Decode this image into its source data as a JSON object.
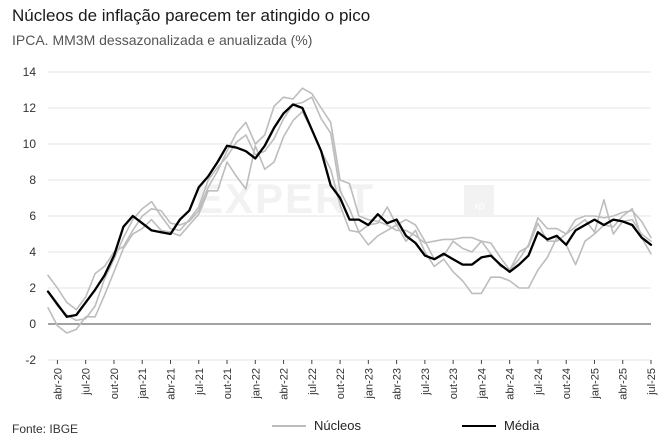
{
  "title": "Núcleos de inflação parecem ter atingido o pico",
  "subtitle": "IPCA. MM3M dessazonalizada e anualizada (%)",
  "source": "Fonte: IBGE",
  "watermark": "EXPERT",
  "watermark_logo": "xp",
  "colors": {
    "nucleos": "#bdbdbd",
    "media": "#000000",
    "grid": "#e6e6e6",
    "axis": "#444444"
  },
  "chart_data": {
    "type": "line",
    "ylim": [
      -2,
      14
    ],
    "yticks": [
      -2,
      0,
      2,
      4,
      6,
      8,
      10,
      12,
      14
    ],
    "grid": true,
    "legend_position": "bottom",
    "x": [
      "mar-20",
      "abr-20",
      "mai-20",
      "jun-20",
      "jul-20",
      "ago-20",
      "set-20",
      "out-20",
      "nov-20",
      "dez-20",
      "jan-21",
      "fev-21",
      "mar-21",
      "abr-21",
      "mai-21",
      "jun-21",
      "jul-21",
      "ago-21",
      "set-21",
      "out-21",
      "nov-21",
      "dez-21",
      "jan-22",
      "fev-22",
      "mar-22",
      "abr-22",
      "mai-22",
      "jun-22",
      "jul-22",
      "ago-22",
      "set-22",
      "out-22",
      "nov-22",
      "dez-22",
      "jan-23",
      "fev-23",
      "mar-23",
      "abr-23",
      "mai-23",
      "jun-23",
      "jul-23",
      "ago-23",
      "set-23",
      "out-23",
      "nov-23",
      "dez-23",
      "jan-24",
      "fev-24",
      "mar-24",
      "abr-24",
      "mai-24",
      "jun-24",
      "jul-24",
      "ago-24",
      "set-24",
      "out-24",
      "nov-24",
      "dez-24",
      "jan-25",
      "fev-25",
      "mar-25",
      "abr-25",
      "mai-25",
      "jun-25",
      "jul-25"
    ],
    "xtick_labels": [
      "abr-20",
      "jul-20",
      "out-20",
      "jan-21",
      "abr-21",
      "jul-21",
      "out-21",
      "jan-22",
      "abr-22",
      "jul-22",
      "out-22",
      "jan-23",
      "abr-23",
      "jul-23",
      "out-23",
      "jan-24",
      "abr-24",
      "jul-24",
      "out-24",
      "jan-25",
      "abr-25",
      "jul-25"
    ],
    "series": [
      {
        "name": "Núcleos",
        "values": [
          2.7,
          2.0,
          1.2,
          0.8,
          1.5,
          2.8,
          3.2,
          4.0,
          4.3,
          5.2,
          6.0,
          6.4,
          6.3,
          5.6,
          5.5,
          5.7,
          6.3,
          7.6,
          8.5,
          9.6,
          10.6,
          11.2,
          10.0,
          10.5,
          12.1,
          12.6,
          12.5,
          13.1,
          12.8,
          12.0,
          11.2,
          8.0,
          7.8,
          6.0,
          5.8,
          5.7,
          5.5,
          5.2,
          5.2,
          4.9,
          4.5,
          4.6,
          4.7,
          4.7,
          4.8,
          4.8,
          4.6,
          3.9,
          3.2,
          3.0,
          3.6,
          4.4,
          5.9,
          5.3,
          5.3,
          5.0,
          5.8,
          6.0,
          6.0,
          5.9,
          6.0,
          6.2,
          6.3,
          5.7,
          4.8
        ]
      },
      {
        "name": "Núcleos",
        "values": [
          1.8,
          1.0,
          0.5,
          0.2,
          0.3,
          1.0,
          2.5,
          3.6,
          4.8,
          5.8,
          6.4,
          6.8,
          6.0,
          5.3,
          5.2,
          5.8,
          6.5,
          8.0,
          8.7,
          9.3,
          10.1,
          10.5,
          9.4,
          9.6,
          10.3,
          11.4,
          12.2,
          12.3,
          12.6,
          11.4,
          10.6,
          7.4,
          6.4,
          5.1,
          5.5,
          5.6,
          6.5,
          5.5,
          5.8,
          5.5,
          4.6,
          3.6,
          3.8,
          4.6,
          4.2,
          4.0,
          4.6,
          4.5,
          3.7,
          3.0,
          4.0,
          4.3,
          5.6,
          4.6,
          4.6,
          5.0,
          5.4,
          5.8,
          5.1,
          6.9,
          5.0,
          5.7,
          5.8,
          5.0,
          4.6
        ]
      },
      {
        "name": "Núcleos",
        "values": [
          0.9,
          -0.1,
          -0.5,
          -0.3,
          0.4,
          0.4,
          1.6,
          2.9,
          4.2,
          5.0,
          5.3,
          5.8,
          5.2,
          5.1,
          4.9,
          5.5,
          6.1,
          7.4,
          7.4,
          9.0,
          8.2,
          7.5,
          9.9,
          8.6,
          9.0,
          10.4,
          11.3,
          11.8,
          10.8,
          9.6,
          8.6,
          6.6,
          5.2,
          5.1,
          4.4,
          4.9,
          5.2,
          5.5,
          4.6,
          5.2,
          4.0,
          3.2,
          3.6,
          2.9,
          2.4,
          1.7,
          1.7,
          2.6,
          2.6,
          2.4,
          2.0,
          2.0,
          3.0,
          3.7,
          4.8,
          4.4,
          3.3,
          4.6,
          5.0,
          5.5,
          5.4,
          6.0,
          6.4,
          4.8,
          3.9
        ]
      },
      {
        "name": "Média",
        "values": [
          1.8,
          1.1,
          0.4,
          0.5,
          1.2,
          1.9,
          2.7,
          3.8,
          5.4,
          6.0,
          5.6,
          5.2,
          5.1,
          5.0,
          5.8,
          6.3,
          7.6,
          8.2,
          9.0,
          9.9,
          9.8,
          9.6,
          9.2,
          9.9,
          10.9,
          11.7,
          12.2,
          12.0,
          10.8,
          9.6,
          7.7,
          7.0,
          5.8,
          5.8,
          5.5,
          6.1,
          5.6,
          5.8,
          4.9,
          4.5,
          3.8,
          3.6,
          3.9,
          3.6,
          3.3,
          3.3,
          3.7,
          3.8,
          3.3,
          2.9,
          3.3,
          3.8,
          5.1,
          4.7,
          4.9,
          4.4,
          5.2,
          5.5,
          5.8,
          5.5,
          5.8,
          5.7,
          5.5,
          4.8,
          4.4
        ]
      }
    ]
  },
  "legend": {
    "nucleos_label": "Núcleos",
    "media_label": "Média"
  }
}
